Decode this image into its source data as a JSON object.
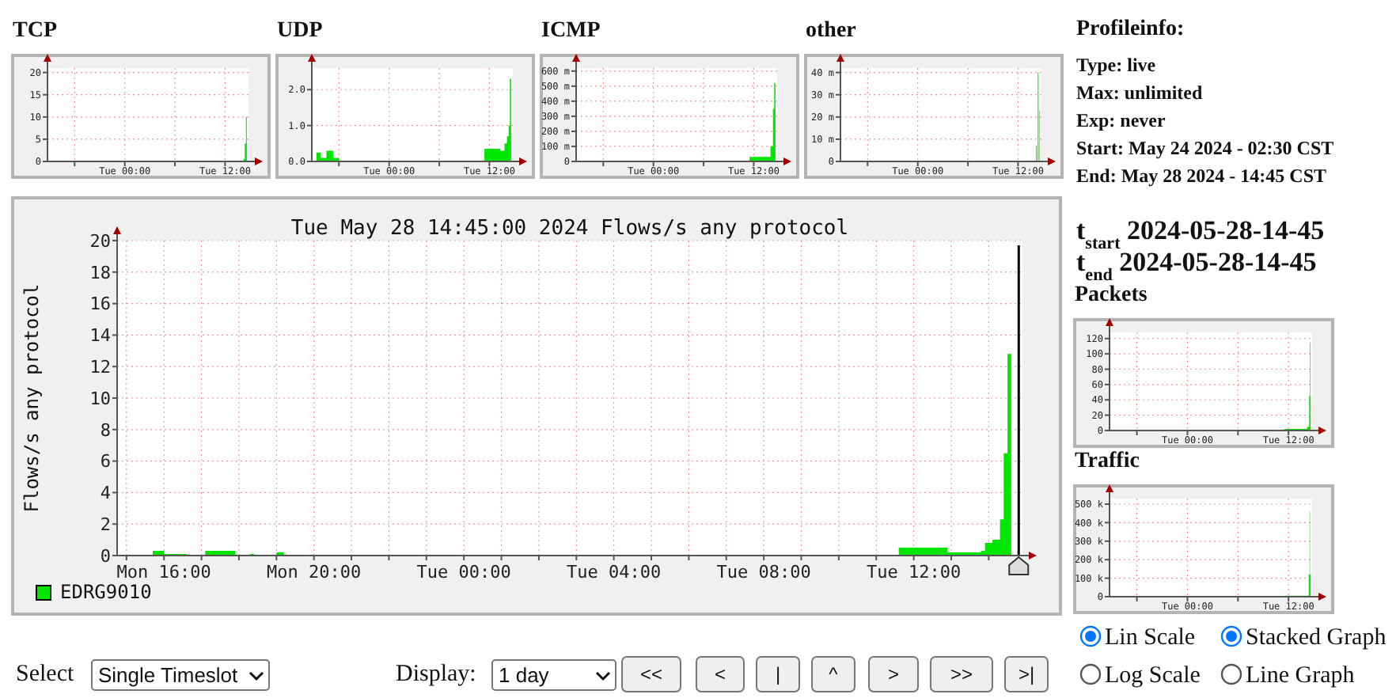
{
  "chart_data": [
    {
      "type": "area",
      "title": "TCP",
      "xlim": [
        "2024-05-27T14:45",
        "2024-05-28T14:48"
      ],
      "ylim": [
        0,
        21
      ],
      "xticks": [
        {
          "value": "2024-05-27T18:00",
          "label": null
        },
        {
          "value": "2024-05-28T00:00",
          "label": "Tue 00:00"
        },
        {
          "value": "2024-05-28T06:00",
          "label": null
        },
        {
          "value": "2024-05-28T12:00",
          "label": "Tue 12:00"
        }
      ],
      "yticks": [
        0,
        5,
        10,
        15,
        20
      ],
      "grid": true,
      "series": [
        {
          "color": "#00e600",
          "x": [
            "2024-05-27T14:45",
            "2024-05-27T18:00",
            "2024-05-28T14:12",
            "2024-05-28T14:21",
            "2024-05-28T14:30",
            "2024-05-28T14:36"
          ],
          "values": [
            0.2,
            0,
            0.5,
            4,
            10,
            0
          ]
        }
      ]
    },
    {
      "type": "area",
      "title": "UDP",
      "xlim": [
        "2024-05-27T14:45",
        "2024-05-28T14:48"
      ],
      "ylim": [
        0,
        2.6
      ],
      "xticks": [
        {
          "value": "2024-05-27T18:00",
          "label": null
        },
        {
          "value": "2024-05-28T00:00",
          "label": "Tue 00:00"
        },
        {
          "value": "2024-05-28T06:00",
          "label": null
        },
        {
          "value": "2024-05-28T12:00",
          "label": "Tue 12:00"
        }
      ],
      "yticks": [
        {
          "value": 0,
          "label": "0.0"
        },
        {
          "value": 1,
          "label": "1.0"
        },
        {
          "value": 2,
          "label": "2.0"
        }
      ],
      "grid": true,
      "series": [
        {
          "color": "#00e600",
          "x": [
            "2024-05-27T14:45",
            "2024-05-27T15:18",
            "2024-05-27T15:48",
            "2024-05-27T16:30",
            "2024-05-27T17:18",
            "2024-05-27T18:00",
            "2024-05-28T11:24",
            "2024-05-28T13:18",
            "2024-05-28T13:48",
            "2024-05-28T14:06",
            "2024-05-28T14:18",
            "2024-05-28T14:27",
            "2024-05-28T14:36"
          ],
          "values": [
            0,
            0.25,
            0.1,
            0.3,
            0.1,
            0,
            0.35,
            0.3,
            0.5,
            0.7,
            1.0,
            2.3,
            0
          ]
        }
      ]
    },
    {
      "type": "area",
      "title": "ICMP",
      "xlim": [
        "2024-05-27T14:45",
        "2024-05-28T14:48"
      ],
      "ylim": [
        0,
        620
      ],
      "xticks": [
        {
          "value": "2024-05-27T18:00",
          "label": null
        },
        {
          "value": "2024-05-28T00:00",
          "label": "Tue 00:00"
        },
        {
          "value": "2024-05-28T06:00",
          "label": null
        },
        {
          "value": "2024-05-28T12:00",
          "label": "Tue 12:00"
        }
      ],
      "yticks": [
        0,
        {
          "value": 100,
          "label": "100 m"
        },
        {
          "value": 200,
          "label": "200 m"
        },
        {
          "value": 300,
          "label": "300 m"
        },
        {
          "value": 400,
          "label": "400 m"
        },
        {
          "value": 500,
          "label": "500 m"
        },
        {
          "value": 600,
          "label": "600 m"
        }
      ],
      "grid": true,
      "series": [
        {
          "color": "#00e600",
          "x": [
            "2024-05-27T14:45",
            "2024-05-28T11:30",
            "2024-05-28T14:00",
            "2024-05-28T14:18",
            "2024-05-28T14:27",
            "2024-05-28T14:36"
          ],
          "values": [
            0,
            30,
            100,
            350,
            520,
            0
          ]
        }
      ]
    },
    {
      "type": "area",
      "title": "other",
      "xlim": [
        "2024-05-27T14:45",
        "2024-05-28T14:48"
      ],
      "ylim": [
        0,
        42
      ],
      "xticks": [
        {
          "value": "2024-05-27T18:00",
          "label": null
        },
        {
          "value": "2024-05-28T00:00",
          "label": "Tue 00:00"
        },
        {
          "value": "2024-05-28T06:00",
          "label": null
        },
        {
          "value": "2024-05-28T12:00",
          "label": "Tue 12:00"
        }
      ],
      "yticks": [
        0,
        {
          "value": 10,
          "label": "10 m"
        },
        {
          "value": 20,
          "label": "20 m"
        },
        {
          "value": 30,
          "label": "30 m"
        },
        {
          "value": 40,
          "label": "40 m"
        }
      ],
      "grid": true,
      "series": [
        {
          "color": "#00e600",
          "x": [
            "2024-05-27T14:45",
            "2024-05-28T14:09",
            "2024-05-28T14:15",
            "2024-05-28T14:21",
            "2024-05-28T14:27",
            "2024-05-28T14:33",
            "2024-05-28T14:37"
          ],
          "values": [
            0,
            7,
            0,
            40,
            0,
            23,
            0
          ]
        }
      ]
    },
    {
      "type": "other",
      "title": "Profileinfo:",
      "annotations": [
        "Type: live",
        "Max: unlimited",
        "Exp: never",
        "Start: May 24 2024 - 02:30 CST",
        "End: May 28 2024 - 14:45 CST",
        "t$_{start}$ 2024-05-28-14-45",
        "t$_{end}$ 2024-05-28-14-45"
      ]
    },
    {
      "type": "area",
      "title": "Tue May 28 14:45:00 2024 Flows/s any protocol",
      "ylabel": "Flows/s any protocol",
      "xlim": [
        "2024-05-27T14:45",
        "2024-05-28T14:54"
      ],
      "ylim": [
        0,
        20
      ],
      "xticks": [
        {
          "value": "2024-05-27T15:00",
          "label": null
        },
        {
          "value": "2024-05-27T16:00",
          "label": "Mon 16:00"
        },
        {
          "value": "2024-05-27T17:00",
          "label": null
        },
        {
          "value": "2024-05-27T18:00",
          "label": null
        },
        {
          "value": "2024-05-27T19:00",
          "label": null
        },
        {
          "value": "2024-05-27T20:00",
          "label": "Mon 20:00"
        },
        {
          "value": "2024-05-27T21:00",
          "label": null
        },
        {
          "value": "2024-05-27T22:00",
          "label": null
        },
        {
          "value": "2024-05-27T23:00",
          "label": null
        },
        {
          "value": "2024-05-28T00:00",
          "label": "Tue 00:00"
        },
        {
          "value": "2024-05-28T01:00",
          "label": null
        },
        {
          "value": "2024-05-28T02:00",
          "label": null
        },
        {
          "value": "2024-05-28T03:00",
          "label": null
        },
        {
          "value": "2024-05-28T04:00",
          "label": "Tue 04:00"
        },
        {
          "value": "2024-05-28T05:00",
          "label": null
        },
        {
          "value": "2024-05-28T06:00",
          "label": null
        },
        {
          "value": "2024-05-28T07:00",
          "label": null
        },
        {
          "value": "2024-05-28T08:00",
          "label": "Tue 08:00"
        },
        {
          "value": "2024-05-28T09:00",
          "label": null
        },
        {
          "value": "2024-05-28T10:00",
          "label": null
        },
        {
          "value": "2024-05-28T11:00",
          "label": null
        },
        {
          "value": "2024-05-28T12:00",
          "label": "Tue 12:00"
        },
        {
          "value": "2024-05-28T13:00",
          "label": null
        },
        {
          "value": "2024-05-28T14:00",
          "label": null
        }
      ],
      "yticks": [
        0,
        2,
        4,
        6,
        8,
        10,
        12,
        14,
        16,
        18,
        20
      ],
      "grid": true,
      "legend": "bottom left",
      "ref_lines": [
        {
          "axis": "x",
          "value": "2024-05-28T14:48",
          "color": "#000000"
        }
      ],
      "series": [
        {
          "name": "EDRG9010",
          "color": "#00e600",
          "x": [
            "2024-05-27T14:45",
            "2024-05-27T15:42",
            "2024-05-27T16:00",
            "2024-05-27T16:30",
            "2024-05-27T16:36",
            "2024-05-27T17:06",
            "2024-05-27T17:54",
            "2024-05-27T18:18",
            "2024-05-27T18:24",
            "2024-05-27T19:00",
            "2024-05-27T19:12",
            "2024-05-28T11:36",
            "2024-05-28T12:54",
            "2024-05-28T13:48",
            "2024-05-28T13:54",
            "2024-05-28T14:06",
            "2024-05-28T14:18",
            "2024-05-28T14:24",
            "2024-05-28T14:30",
            "2024-05-28T14:36",
            "2024-05-28T14:39"
          ],
          "values": [
            0,
            0.3,
            0.1,
            0.1,
            0,
            0.3,
            0,
            0.1,
            0,
            0.2,
            0,
            0.5,
            0.2,
            0.3,
            0.8,
            1.0,
            2.3,
            6.5,
            12.8,
            0,
            0
          ]
        }
      ]
    },
    {
      "type": "area",
      "title": "Packets",
      "xlim": [
        "2024-05-27T14:45",
        "2024-05-28T14:48"
      ],
      "ylim": [
        0,
        128
      ],
      "xticks": [
        {
          "value": "2024-05-27T18:00",
          "label": null
        },
        {
          "value": "2024-05-28T00:00",
          "label": "Tue 00:00"
        },
        {
          "value": "2024-05-28T06:00",
          "label": null
        },
        {
          "value": "2024-05-28T12:00",
          "label": "Tue 12:00"
        }
      ],
      "yticks": [
        0,
        20,
        40,
        60,
        80,
        100,
        120
      ],
      "grid": true,
      "series": [
        {
          "color": "#00e600",
          "x": [
            "2024-05-27T14:45",
            "2024-05-27T18:00",
            "2024-05-28T11:30",
            "2024-05-28T14:12",
            "2024-05-28T14:27",
            "2024-05-28T14:33",
            "2024-05-28T14:37"
          ],
          "values": [
            1,
            0,
            2,
            5,
            45,
            115,
            0
          ]
        }
      ]
    },
    {
      "type": "area",
      "title": "Traffic",
      "xlim": [
        "2024-05-27T14:45",
        "2024-05-28T14:48"
      ],
      "ylim": [
        0,
        530
      ],
      "xticks": [
        {
          "value": "2024-05-27T18:00",
          "label": null
        },
        {
          "value": "2024-05-28T00:00",
          "label": "Tue 00:00"
        },
        {
          "value": "2024-05-28T06:00",
          "label": null
        },
        {
          "value": "2024-05-28T12:00",
          "label": "Tue 12:00"
        }
      ],
      "yticks": [
        0,
        {
          "value": 100,
          "label": "100 k"
        },
        {
          "value": 200,
          "label": "200 k"
        },
        {
          "value": 300,
          "label": "300 k"
        },
        {
          "value": 400,
          "label": "400 k"
        },
        {
          "value": 500,
          "label": "500 k"
        }
      ],
      "grid": true,
      "series": [
        {
          "color": "#00e600",
          "x": [
            "2024-05-27T14:45",
            "2024-05-27T18:00",
            "2024-05-28T11:30",
            "2024-05-28T14:24",
            "2024-05-28T14:30",
            "2024-05-28T14:33",
            "2024-05-28T14:37"
          ],
          "values": [
            2,
            0,
            5,
            120,
            460,
            120,
            0
          ]
        }
      ]
    },
    {
      "type": "other",
      "annotations": [
        "Select",
        "Single Timeslot",
        "Display:",
        "1 day",
        "<<",
        "<",
        "|",
        "^",
        ">",
        ">>",
        ">|",
        "Lin Scale",
        "Stacked Graph",
        "Log Scale",
        "Line Graph"
      ]
    }
  ]
}
